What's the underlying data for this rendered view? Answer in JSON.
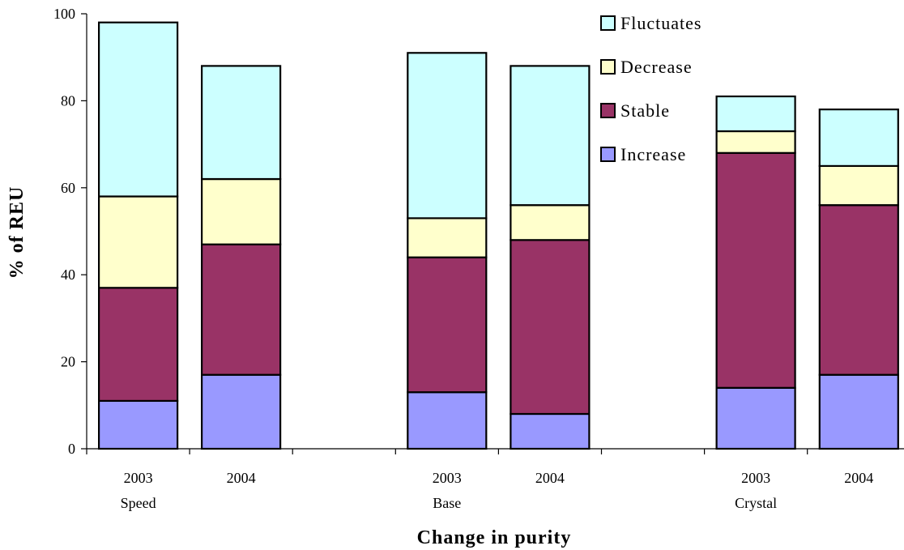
{
  "chart_data": {
    "type": "bar",
    "stacked": true,
    "title": "",
    "xlabel": "Change in purity",
    "ylabel": "% of REU",
    "ylim": [
      0,
      100
    ],
    "yticks": [
      0,
      20,
      40,
      60,
      80,
      100
    ],
    "grid": false,
    "legend_position": "top-right",
    "groups": [
      "Speed",
      "Base",
      "Crystal"
    ],
    "categories": [
      "2003",
      "2004",
      "2003",
      "2004",
      "2003",
      "2004"
    ],
    "series": [
      {
        "name": "Increase",
        "color": "#9999ff",
        "values": [
          11,
          17,
          13,
          8,
          14,
          17
        ]
      },
      {
        "name": "Stable",
        "color": "#993366",
        "values": [
          26,
          30,
          31,
          40,
          54,
          39
        ]
      },
      {
        "name": "Decrease",
        "color": "#ffffcc",
        "values": [
          21,
          15,
          9,
          8,
          5,
          9
        ]
      },
      {
        "name": "Fluctuates",
        "color": "#ccffff",
        "values": [
          40,
          26,
          38,
          32,
          8,
          13
        ]
      }
    ]
  }
}
